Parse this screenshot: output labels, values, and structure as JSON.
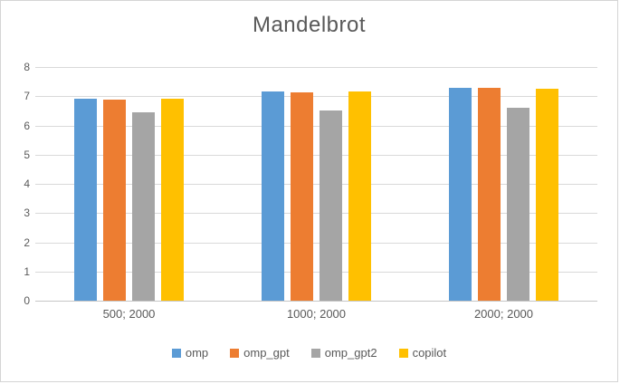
{
  "chart_data": {
    "type": "bar",
    "title": "Mandelbrot",
    "categories": [
      "500; 2000",
      "1000; 2000",
      "2000; 2000"
    ],
    "series": [
      {
        "name": "omp",
        "color": "#5B9BD5",
        "values": [
          6.9,
          7.15,
          7.28
        ]
      },
      {
        "name": "omp_gpt",
        "color": "#ED7D31",
        "values": [
          6.88,
          7.12,
          7.3
        ]
      },
      {
        "name": "omp_gpt2",
        "color": "#A5A5A5",
        "values": [
          6.45,
          6.5,
          6.6
        ]
      },
      {
        "name": "copilot",
        "color": "#FFC000",
        "values": [
          6.9,
          7.15,
          7.27
        ]
      }
    ],
    "ylim": [
      0,
      8
    ],
    "ytick_step": 1,
    "ytick_labels": [
      "0",
      "1",
      "2",
      "3",
      "4",
      "5",
      "6",
      "7",
      "8"
    ],
    "grid": true,
    "legend_position": "bottom",
    "colors": {
      "title_text": "#595959",
      "axis_text": "#595959",
      "gridline": "#d9d9d9",
      "background": "#ffffff",
      "border": "#d4d4d4"
    }
  }
}
